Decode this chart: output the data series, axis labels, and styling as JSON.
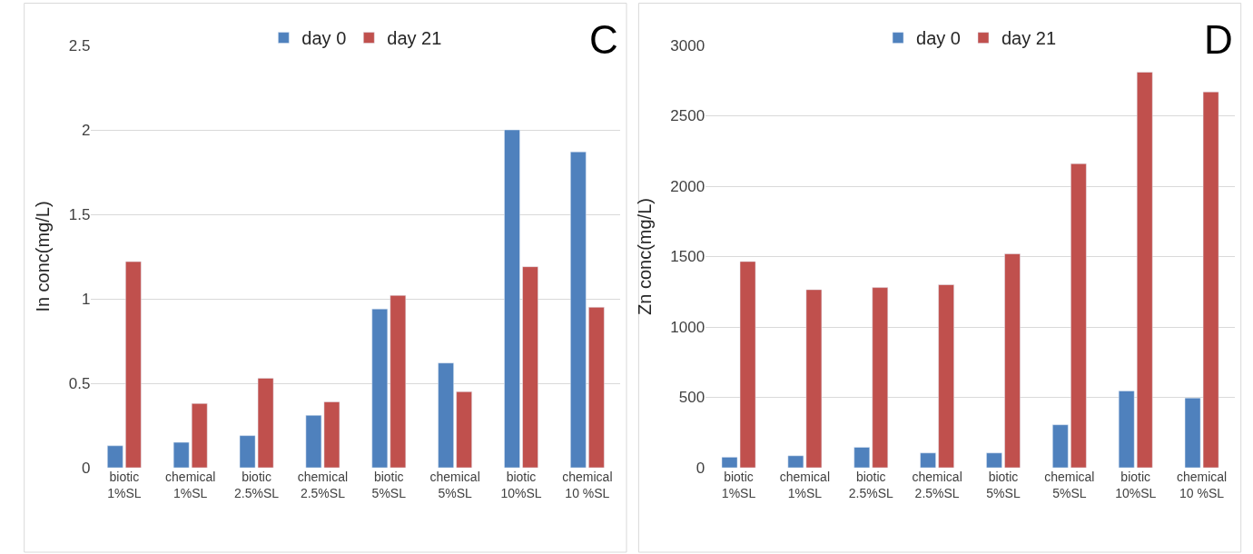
{
  "chart_data": [
    {
      "type": "bar",
      "title": "C",
      "ylabel": "In conc(mg/L)",
      "categories": [
        "biotic 1%SL",
        "chemical 1%SL",
        "biotic 2.5%SL",
        "chemical 2.5%SL",
        "biotic 5%SL",
        "chemical 5%SL",
        "biotic 10%SL",
        "chemical 10 %SL"
      ],
      "series": [
        {
          "name": "day 0",
          "color": "#4f81bd",
          "values": [
            0.13,
            0.15,
            0.19,
            0.31,
            0.94,
            0.62,
            2.0,
            1.87
          ]
        },
        {
          "name": "day 21",
          "color": "#c0504d",
          "values": [
            1.22,
            0.38,
            0.53,
            0.39,
            1.02,
            0.45,
            1.19,
            0.95
          ]
        }
      ],
      "ylim": [
        0,
        2.5
      ],
      "yticks": [
        0,
        0.5,
        1,
        1.5,
        2,
        2.5
      ],
      "grid": "y",
      "legend": "top"
    },
    {
      "type": "bar",
      "title": "D",
      "ylabel": "Zn conc(mg/L)",
      "categories": [
        "biotic 1%SL",
        "chemical 1%SL",
        "biotic 2.5%SL",
        "chemical 2.5%SL",
        "biotic 5%SL",
        "chemical 5%SL",
        "biotic 10%SL",
        "chemical 10 %SL"
      ],
      "series": [
        {
          "name": "day 0",
          "color": "#4f81bd",
          "values": [
            75,
            85,
            145,
            105,
            105,
            305,
            545,
            495
          ]
        },
        {
          "name": "day 21",
          "color": "#c0504d",
          "values": [
            1465,
            1265,
            1280,
            1300,
            1520,
            2160,
            2810,
            2670
          ]
        }
      ],
      "ylim": [
        0,
        3000
      ],
      "yticks": [
        0,
        500,
        1000,
        1500,
        2000,
        2500,
        3000
      ],
      "grid": "y",
      "legend": "top"
    }
  ]
}
